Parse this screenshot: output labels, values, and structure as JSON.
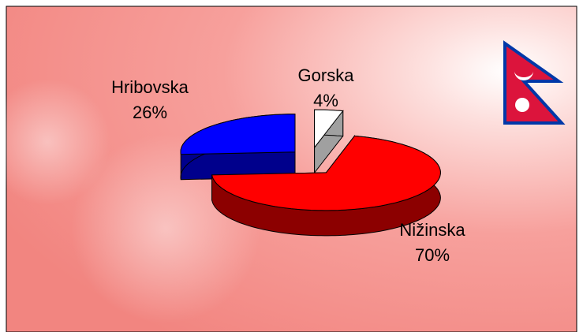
{
  "chart_data": {
    "type": "pie3d",
    "categories": [
      "Gorska",
      "Nižinska",
      "Hribovska"
    ],
    "values": [
      4,
      70,
      26
    ],
    "value_labels": [
      "4%",
      "70%",
      "26%"
    ],
    "colors": [
      "#ffffff",
      "#ff0000",
      "#0000ff"
    ]
  }
}
